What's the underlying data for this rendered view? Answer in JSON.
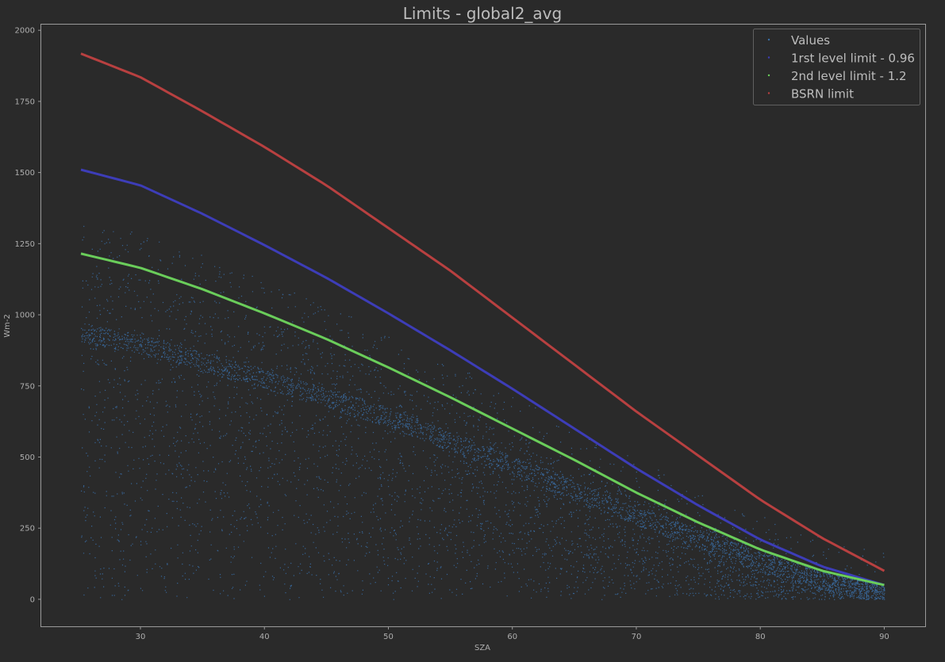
{
  "chart_data": {
    "type": "scatter",
    "title": "Limits - global2_avg",
    "xlabel": "SZA",
    "ylabel": "Wm-2",
    "xlim": [
      22,
      93.3
    ],
    "ylim": [
      -95,
      2020
    ],
    "xticks": [
      30,
      40,
      50,
      60,
      70,
      80,
      90
    ],
    "yticks": [
      0,
      250,
      500,
      750,
      1000,
      1250,
      1500,
      1750,
      2000
    ],
    "grid": false,
    "legend_position": "top-right",
    "series": [
      {
        "name": "Values",
        "kind": "scatter-cloud",
        "color": "#3a6fa8",
        "x_range": [
          25.2,
          90
        ],
        "y_range": [
          0,
          1370
        ],
        "dense_band": [
          [
            25,
            940
          ],
          [
            30,
            895
          ],
          [
            40,
            775
          ],
          [
            50,
            640
          ],
          [
            60,
            470
          ],
          [
            70,
            295
          ],
          [
            80,
            130
          ],
          [
            90,
            10
          ]
        ]
      },
      {
        "name": "1rst level limit - 0.96",
        "kind": "limit-line",
        "color": "#3d3db8",
        "x": [
          25.2,
          30,
          35,
          40,
          45,
          50,
          55,
          60,
          65,
          70,
          75,
          80,
          85,
          90
        ],
        "values": [
          1510,
          1455,
          1355,
          1245,
          1130,
          1005,
          875,
          740,
          600,
          460,
          330,
          210,
          115,
          50
        ]
      },
      {
        "name": "2nd level limit - 1.2",
        "kind": "limit-line",
        "color": "#6acd5a",
        "x": [
          25.2,
          30,
          35,
          40,
          45,
          50,
          55,
          60,
          65,
          70,
          75,
          80,
          85,
          90
        ],
        "values": [
          1215,
          1165,
          1090,
          1005,
          915,
          815,
          710,
          600,
          490,
          375,
          270,
          175,
          100,
          50
        ]
      },
      {
        "name": "BSRN  limit",
        "kind": "limit-line",
        "color": "#b84040",
        "x": [
          25.2,
          30,
          35,
          40,
          45,
          50,
          55,
          60,
          65,
          70,
          75,
          80,
          85,
          90
        ],
        "values": [
          1918,
          1835,
          1715,
          1590,
          1455,
          1305,
          1155,
          990,
          825,
          660,
          505,
          350,
          215,
          100
        ]
      }
    ]
  }
}
